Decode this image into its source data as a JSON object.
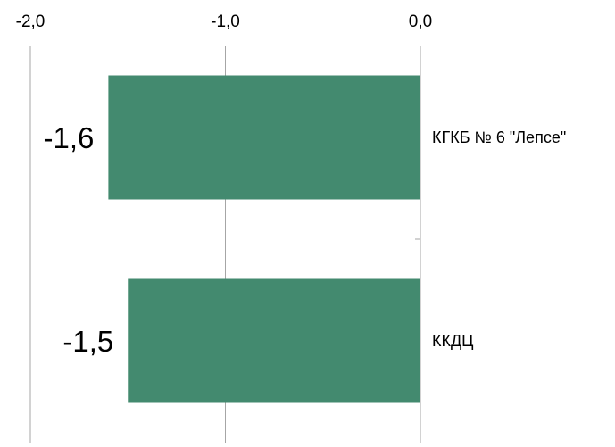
{
  "chart_data": {
    "type": "bar",
    "orientation": "horizontal",
    "categories": [
      "КГКБ № 6 \"Лепсе\"",
      "ККДЦ"
    ],
    "values": [
      -1.6,
      -1.5
    ],
    "data_labels": [
      "-1,6",
      "-1,5"
    ],
    "x_ticks": [
      -2.0,
      -1.0,
      0.0
    ],
    "x_tick_labels": [
      "-2,0",
      "-1,0",
      "0,0"
    ],
    "xlim": [
      -2.0,
      0.0
    ],
    "x_axis_position": "top",
    "category_labels_position": "right",
    "grid": true,
    "legend": "none",
    "title": "",
    "xlabel": "",
    "ylabel": "",
    "colors": {
      "bar": "#438a6f",
      "grid": "#a6a6a6",
      "text": "#000000"
    }
  }
}
